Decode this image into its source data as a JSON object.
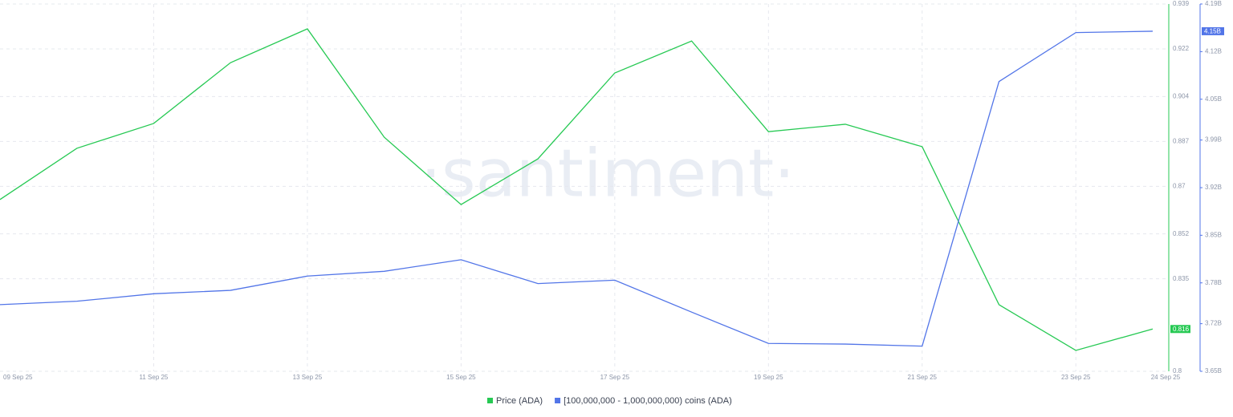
{
  "chart_data": {
    "type": "line",
    "watermark": "·santiment·",
    "x": [
      "09 Sep 25",
      null,
      "11 Sep 25",
      null,
      "13 Sep 25",
      null,
      "15 Sep 25",
      null,
      "17 Sep 25",
      null,
      "19 Sep 25",
      null,
      "21 Sep 25",
      null,
      "23 Sep 25",
      "24 Sep 25"
    ],
    "series": [
      {
        "name": "Price (ADA)",
        "color": "#26c953",
        "values": [
          0.865,
          0.8844,
          0.8938,
          0.9168,
          0.9296,
          0.8886,
          0.8631,
          0.8804,
          0.9129,
          0.925,
          0.8907,
          0.8935,
          0.885,
          0.8252,
          0.8079,
          0.816
        ]
      },
      {
        "name": "[100,000,000 - 1,000,000,000) coins (ADA)",
        "color": "#5275e8",
        "axis": "y2",
        "values": [
          3748000000,
          3753000000,
          3764000000,
          3769000000,
          3790000000,
          3797000000,
          3814000000,
          3779000000,
          3784000000,
          3737000000,
          3691000000,
          3690000000,
          3687000000,
          4076000000,
          4148000000,
          4150000000
        ],
        "value_labels": [
          null,
          null,
          null,
          null,
          null,
          null,
          null,
          null,
          null,
          null,
          null,
          null,
          null,
          null,
          null,
          "4.15B"
        ]
      }
    ],
    "ylim": [
      0.8,
      0.939
    ],
    "yticks": [
      0.8,
      0.835,
      0.852,
      0.87,
      0.887,
      0.904,
      0.922,
      0.939
    ],
    "y2lim": [
      3650000000,
      4190000000
    ],
    "y2ticks": [
      {
        "value": 3650000000,
        "label": "3.65B"
      },
      {
        "value": 3720000000,
        "label": "3.72B"
      },
      {
        "value": 3780000000,
        "label": "3.78B"
      },
      {
        "value": 3850000000,
        "label": "3.85B"
      },
      {
        "value": 3920000000,
        "label": "3.92B"
      },
      {
        "value": 3990000000,
        "label": "3.99B"
      },
      {
        "value": 4050000000,
        "label": "4.05B"
      },
      {
        "value": 4120000000,
        "label": "4.12B"
      },
      {
        "value": 4190000000,
        "label": "4.19B"
      }
    ],
    "grid": true
  }
}
